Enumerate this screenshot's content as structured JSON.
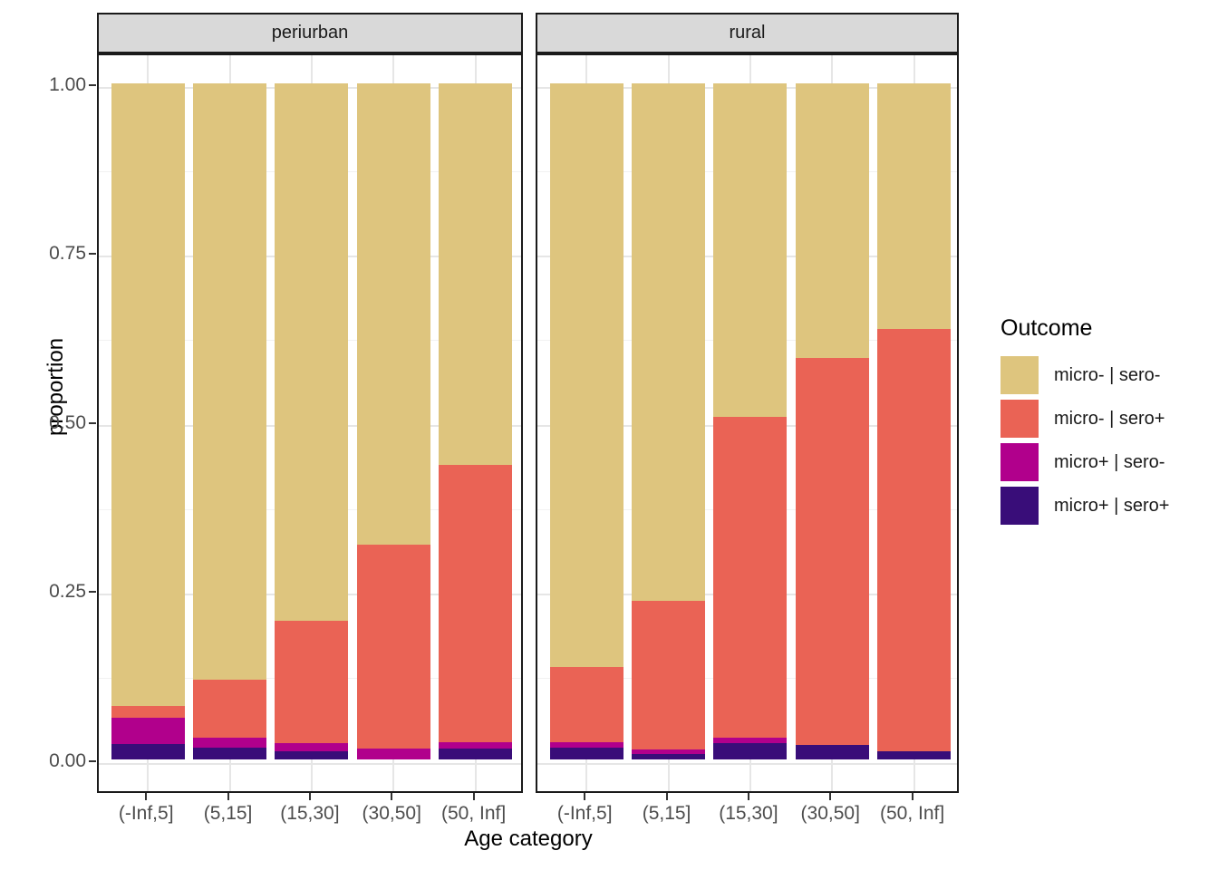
{
  "chart_data": {
    "type": "bar",
    "stacked": true,
    "orientation": "vertical",
    "xlabel": "Age category",
    "ylabel": "proportion",
    "ylim": [
      0,
      1
    ],
    "y_ticks": [
      {
        "label": "0.00",
        "value": 0
      },
      {
        "label": "0.25",
        "value": 0.25
      },
      {
        "label": "0.50",
        "value": 0.5
      },
      {
        "label": "0.75",
        "value": 0.75
      },
      {
        "label": "1.00",
        "value": 1
      }
    ],
    "y_minor_gridlines": [
      0.125,
      0.375,
      0.625,
      0.875
    ],
    "categories": [
      "(-Inf,5]",
      "(5,15]",
      "(15,30]",
      "(30,50]",
      "(50, Inf]"
    ],
    "facets": [
      {
        "label": "periurban",
        "series": [
          {
            "name": "micro- | sero-",
            "values": [
              0.921,
              0.882,
              0.796,
              0.683,
              0.565
            ]
          },
          {
            "name": "micro- | sero+",
            "values": [
              0.018,
              0.087,
              0.18,
              0.302,
              0.41
            ]
          },
          {
            "name": "micro+ | sero-",
            "values": [
              0.039,
              0.014,
              0.012,
              0.015,
              0.01
            ]
          },
          {
            "name": "micro+ | sero+",
            "values": [
              0.022,
              0.017,
              0.012,
              0.0,
              0.015
            ]
          }
        ]
      },
      {
        "label": "rural",
        "series": [
          {
            "name": "micro- | sero-",
            "values": [
              0.864,
              0.766,
              0.494,
              0.407,
              0.364
            ]
          },
          {
            "name": "micro- | sero+",
            "values": [
              0.111,
              0.22,
              0.474,
              0.572,
              0.624
            ]
          },
          {
            "name": "micro+ | sero-",
            "values": [
              0.008,
              0.006,
              0.009,
              0.0,
              0.0
            ]
          },
          {
            "name": "micro+ | sero+",
            "values": [
              0.017,
              0.008,
              0.023,
              0.021,
              0.012
            ]
          }
        ]
      }
    ],
    "legend": {
      "title": "Outcome",
      "position": "right",
      "entries": [
        {
          "label": "micro- | sero-",
          "color": "#DEC57E"
        },
        {
          "label": "micro- | sero+",
          "color": "#EA6355"
        },
        {
          "label": "micro+ | sero-",
          "color": "#B1008C"
        },
        {
          "label": "micro+ | sero+",
          "color": "#390D79"
        }
      ]
    },
    "grid": "major+minor",
    "panel_border_color": "#1A1A1A",
    "strip_fill_color": "#D9D9D9"
  }
}
